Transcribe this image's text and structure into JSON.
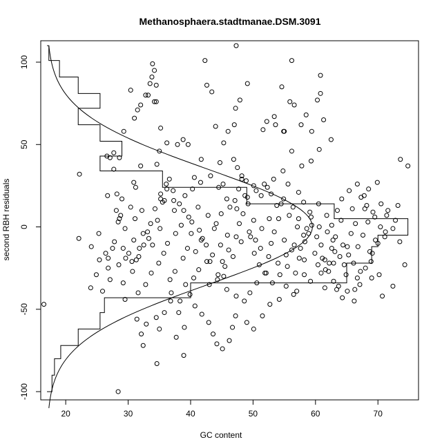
{
  "chart_data": {
    "type": "scatter",
    "title": "Methanosphaera.stadtmanae.DSM.3091",
    "xlabel": "GC content",
    "ylabel": "second RBH residuals",
    "xlim": [
      16,
      76.5
    ],
    "ylim": [
      -105,
      113
    ],
    "xticks": [
      20,
      30,
      40,
      50,
      60,
      70
    ],
    "yticks": [
      -100,
      -50,
      0,
      50,
      100
    ],
    "xtick_labels": [
      "20",
      "30",
      "40",
      "50",
      "60",
      "70"
    ],
    "ytick_labels": [
      "-100",
      "-50",
      "0",
      "50",
      "100"
    ],
    "density_curve": {
      "description": "normal density overlay, drawn sideways (y on vertical axis, density toward GC)",
      "mean": 0,
      "sd": 35,
      "base_x": 17,
      "peak_x": 59.5,
      "y_range": [
        -110,
        110
      ]
    },
    "histogram": {
      "orientation": "horizontal",
      "base_x": 17,
      "bins": [
        {
          "y0": -100,
          "y1": -90,
          "x": 17.8
        },
        {
          "y0": -90,
          "y1": -80,
          "x": 18.2
        },
        {
          "y0": -80,
          "y1": -72,
          "x": 19.2
        },
        {
          "y0": -72,
          "y1": -62,
          "x": 22
        },
        {
          "y0": -62,
          "y1": -52,
          "x": 25.5
        },
        {
          "y0": -52,
          "y1": -43,
          "x": 26.2
        },
        {
          "y0": -43,
          "y1": -34,
          "x": 40
        },
        {
          "y0": -34,
          "y1": -22,
          "x": 65
        },
        {
          "y0": -22,
          "y1": -12,
          "x": 69
        },
        {
          "y0": -12,
          "y1": -5,
          "x": 70
        },
        {
          "y0": -5,
          "y1": 5,
          "x": 74.8
        },
        {
          "y0": 5,
          "y1": 14,
          "x": 63
        },
        {
          "y0": 14,
          "y1": 24,
          "x": 49
        },
        {
          "y0": 24,
          "y1": 34,
          "x": 35.5
        },
        {
          "y0": 34,
          "y1": 43,
          "x": 25.5
        },
        {
          "y0": 43,
          "y1": 52,
          "x": 29
        },
        {
          "y0": 52,
          "y1": 62,
          "x": 25.5
        },
        {
          "y0": 62,
          "y1": 72,
          "x": 22
        },
        {
          "y0": 72,
          "y1": 81,
          "x": 25.5
        },
        {
          "y0": 81,
          "y1": 91,
          "x": 22
        },
        {
          "y0": 91,
          "y1": 101,
          "x": 19
        },
        {
          "y0": 101,
          "y1": 110,
          "x": 17.3
        }
      ]
    },
    "points": [
      [
        16.5,
        -47
      ],
      [
        22.2,
        32
      ],
      [
        22.1,
        -7
      ],
      [
        28.4,
        -100
      ],
      [
        47.3,
        110
      ],
      [
        56.2,
        101
      ],
      [
        60.8,
        92
      ],
      [
        73.6,
        41
      ],
      [
        74.8,
        37
      ],
      [
        33.9,
        99
      ],
      [
        33.8,
        91
      ],
      [
        34.2,
        95
      ],
      [
        33.5,
        87
      ],
      [
        34.5,
        86
      ],
      [
        33.2,
        80
      ],
      [
        34.5,
        76
      ],
      [
        31.5,
        71
      ],
      [
        32,
        74
      ],
      [
        32.8,
        80
      ],
      [
        31,
        66
      ],
      [
        30.4,
        83
      ],
      [
        34.2,
        76
      ],
      [
        35.2,
        60
      ],
      [
        35,
        46
      ],
      [
        34.6,
        38
      ],
      [
        36.2,
        51
      ],
      [
        37.9,
        50
      ],
      [
        38.8,
        53
      ],
      [
        39.6,
        50
      ],
      [
        36.6,
        29
      ],
      [
        37.2,
        22
      ],
      [
        36.2,
        23
      ],
      [
        35.8,
        16
      ],
      [
        35.2,
        17
      ],
      [
        35.5,
        15
      ],
      [
        35.1,
        -1
      ],
      [
        34.7,
        4
      ],
      [
        33.3,
        -7
      ],
      [
        33.9,
        -11
      ],
      [
        42.3,
        101
      ],
      [
        42.6,
        86
      ],
      [
        43.4,
        82
      ],
      [
        44,
        61
      ],
      [
        45.3,
        51
      ],
      [
        46,
        58
      ],
      [
        47.2,
        72
      ],
      [
        47.9,
        77
      ],
      [
        49.1,
        87
      ],
      [
        47,
        62
      ],
      [
        41.7,
        41
      ],
      [
        44.7,
        39
      ],
      [
        46.9,
        41
      ],
      [
        47.5,
        36
      ],
      [
        48.2,
        29
      ],
      [
        47.7,
        23
      ],
      [
        49.1,
        18
      ],
      [
        45.2,
        26
      ],
      [
        40.6,
        30
      ],
      [
        29.3,
        58
      ],
      [
        31.2,
        24
      ],
      [
        32,
        37
      ],
      [
        30.9,
        27
      ],
      [
        29,
        17
      ],
      [
        27.1,
        42
      ],
      [
        26.6,
        43
      ],
      [
        27.7,
        45
      ],
      [
        28.6,
        42
      ],
      [
        27.7,
        35
      ],
      [
        28.2,
        20
      ],
      [
        26.7,
        19
      ],
      [
        25.3,
        -4
      ],
      [
        24.1,
        -12
      ],
      [
        25.4,
        -20
      ],
      [
        26.8,
        -25
      ],
      [
        26.8,
        -19
      ],
      [
        27.5,
        -13
      ],
      [
        27.8,
        -9
      ],
      [
        28.6,
        5
      ],
      [
        28.8,
        7
      ],
      [
        28.1,
        10
      ],
      [
        28.4,
        3
      ],
      [
        29.2,
        -13
      ],
      [
        29.6,
        -19
      ],
      [
        30.6,
        -21
      ],
      [
        30.1,
        -16
      ],
      [
        29.2,
        -34
      ],
      [
        27.1,
        -32
      ],
      [
        28.5,
        -23
      ],
      [
        24,
        -37
      ],
      [
        26.4,
        -16
      ],
      [
        24.9,
        -29
      ],
      [
        25.9,
        -39
      ],
      [
        29.5,
        -44
      ],
      [
        31.4,
        -56
      ],
      [
        32.9,
        -59
      ],
      [
        32.4,
        -72
      ],
      [
        32.1,
        -65
      ],
      [
        34.6,
        -83
      ],
      [
        35,
        -62
      ],
      [
        34.5,
        -55
      ],
      [
        35.8,
        -52
      ],
      [
        36.8,
        -45
      ],
      [
        38.3,
        -45
      ],
      [
        38.1,
        -52
      ],
      [
        37.7,
        -67
      ],
      [
        38.9,
        -78
      ],
      [
        39,
        -61
      ],
      [
        36.9,
        -40
      ],
      [
        36.7,
        -32
      ],
      [
        37.5,
        -27
      ],
      [
        38.8,
        -19
      ],
      [
        39.5,
        -13
      ],
      [
        40.1,
        -4
      ],
      [
        40.8,
        -15
      ],
      [
        41.9,
        -7
      ],
      [
        42.5,
        -11
      ],
      [
        43.1,
        -21
      ],
      [
        44.3,
        -32
      ],
      [
        45.3,
        -30
      ],
      [
        45.1,
        -21
      ],
      [
        46.1,
        -14
      ],
      [
        47.3,
        -6
      ],
      [
        47.8,
        2
      ],
      [
        48.4,
        8
      ],
      [
        49.6,
        -6
      ],
      [
        50.2,
        -16
      ],
      [
        51,
        -23
      ],
      [
        52.1,
        -28
      ],
      [
        52.9,
        -10
      ],
      [
        53.4,
        -3
      ],
      [
        54.1,
        5
      ],
      [
        55,
        -8
      ],
      [
        56.2,
        -14
      ],
      [
        57.4,
        -19
      ],
      [
        58.3,
        -9
      ],
      [
        58.9,
        -4
      ],
      [
        59.4,
        1
      ],
      [
        60.2,
        -6
      ],
      [
        60.9,
        -11
      ],
      [
        61.5,
        -20
      ],
      [
        62.1,
        -27
      ],
      [
        62.9,
        -33
      ],
      [
        63.4,
        -38
      ],
      [
        64.3,
        -43
      ],
      [
        65.1,
        -39
      ],
      [
        66.2,
        -45
      ],
      [
        67.1,
        -35
      ],
      [
        68,
        -25
      ],
      [
        69.1,
        -16
      ],
      [
        70,
        -10
      ],
      [
        71.2,
        -3
      ],
      [
        72.4,
        -1
      ],
      [
        73.5,
        -9
      ],
      [
        70.7,
        -42
      ],
      [
        72.4,
        -36
      ],
      [
        74.3,
        -23
      ],
      [
        41.7,
        -8
      ],
      [
        43.8,
        -1
      ],
      [
        44.9,
        8
      ],
      [
        46.3,
        12
      ],
      [
        47.1,
        16
      ],
      [
        49.2,
        14
      ],
      [
        50.1,
        4
      ],
      [
        51.4,
        -1
      ],
      [
        52.6,
        5
      ],
      [
        53.8,
        13
      ],
      [
        54.9,
        17
      ],
      [
        56.4,
        12
      ],
      [
        57.3,
        5
      ],
      [
        58.6,
        -1
      ],
      [
        59.1,
        9
      ],
      [
        60.5,
        14
      ],
      [
        61.8,
        7
      ],
      [
        62.6,
        1
      ],
      [
        63.2,
        -6
      ],
      [
        64.4,
        -11
      ],
      [
        65.3,
        -17
      ],
      [
        66.1,
        -22
      ],
      [
        66.8,
        -12
      ],
      [
        67.6,
        -5
      ],
      [
        68.4,
        3
      ],
      [
        69.2,
        9
      ],
      [
        70.5,
        14
      ],
      [
        71.4,
        7
      ],
      [
        68.7,
        -15
      ],
      [
        67.2,
        -27
      ],
      [
        63.7,
        -36
      ],
      [
        64.9,
        -29
      ],
      [
        66.7,
        -31
      ],
      [
        68.9,
        -21
      ],
      [
        70.2,
        -29
      ],
      [
        65.7,
        -4
      ],
      [
        66.4,
        2
      ],
      [
        67.9,
        11
      ],
      [
        69.6,
        -8
      ],
      [
        62.2,
        -22
      ],
      [
        60.9,
        -28
      ],
      [
        59.2,
        -33
      ],
      [
        61.5,
        -37
      ],
      [
        63.1,
        -15
      ],
      [
        62.8,
        -8
      ],
      [
        64.1,
        4
      ],
      [
        65.9,
        11
      ],
      [
        67.3,
        18
      ],
      [
        68.5,
        23
      ],
      [
        69.9,
        27
      ],
      [
        58.2,
        -29
      ],
      [
        57,
        -39
      ],
      [
        56.5,
        -41
      ],
      [
        55.3,
        -36
      ],
      [
        54.2,
        -44
      ],
      [
        52.7,
        -47
      ],
      [
        51.5,
        -54
      ],
      [
        50.1,
        -62
      ],
      [
        49,
        -58
      ],
      [
        47.2,
        -54
      ],
      [
        46.7,
        -61
      ],
      [
        46.2,
        -69
      ],
      [
        45.1,
        -74
      ],
      [
        44.2,
        -71
      ],
      [
        43.6,
        -65
      ],
      [
        42.9,
        -58
      ],
      [
        41.8,
        -53
      ],
      [
        40.7,
        -48
      ],
      [
        39.9,
        -41
      ],
      [
        39.2,
        -35
      ],
      [
        40.5,
        -31
      ],
      [
        41.3,
        -26
      ],
      [
        42.6,
        -21
      ],
      [
        43.5,
        -17
      ],
      [
        44.8,
        -11
      ],
      [
        45.9,
        -5
      ],
      [
        44.1,
        2
      ],
      [
        42.8,
        7
      ],
      [
        41.2,
        12
      ],
      [
        39.7,
        6
      ],
      [
        38.5,
        1
      ],
      [
        37.6,
        -4
      ],
      [
        36.3,
        -10
      ],
      [
        35.7,
        -16
      ],
      [
        34.9,
        -22
      ],
      [
        33.7,
        -28
      ],
      [
        32.8,
        -35
      ],
      [
        31.6,
        -40
      ],
      [
        30.7,
        -27
      ],
      [
        31.7,
        -18
      ],
      [
        32.5,
        -11
      ],
      [
        33.1,
        -3
      ],
      [
        31.1,
        5
      ],
      [
        32.2,
        10
      ],
      [
        30.4,
        12
      ],
      [
        29.5,
        -1
      ],
      [
        30.9,
        -8
      ],
      [
        31.8,
        -13
      ],
      [
        37.4,
        10
      ],
      [
        38.2,
        14
      ],
      [
        39.1,
        19
      ],
      [
        40.3,
        23
      ],
      [
        41.6,
        27
      ],
      [
        43.2,
        31
      ],
      [
        44.5,
        24
      ],
      [
        45.8,
        17
      ],
      [
        47.4,
        11
      ],
      [
        48.7,
        19
      ],
      [
        50.5,
        22
      ],
      [
        51.8,
        26
      ],
      [
        52.9,
        20
      ],
      [
        54.5,
        14
      ],
      [
        55.8,
        7
      ],
      [
        57.1,
        0
      ],
      [
        58.1,
        -5
      ],
      [
        56.6,
        -11
      ],
      [
        55.3,
        -17
      ],
      [
        54,
        -22
      ],
      [
        52.5,
        -18
      ],
      [
        51.2,
        -13
      ],
      [
        50.4,
        -8
      ],
      [
        49.4,
        -3
      ],
      [
        48.1,
        -9
      ],
      [
        46.8,
        -18
      ],
      [
        45.5,
        -24
      ],
      [
        44.4,
        -29
      ],
      [
        43,
        -35
      ],
      [
        56.6,
        74
      ],
      [
        57.7,
        62
      ],
      [
        58.5,
        68
      ],
      [
        59.4,
        58
      ],
      [
        60.3,
        77
      ],
      [
        60.8,
        81
      ],
      [
        61.3,
        65
      ],
      [
        62.5,
        53
      ],
      [
        60.6,
        47
      ],
      [
        59.3,
        40
      ],
      [
        57.8,
        37
      ],
      [
        56.2,
        46
      ],
      [
        55,
        58
      ],
      [
        53.6,
        62
      ],
      [
        52.2,
        64
      ],
      [
        51.6,
        59
      ],
      [
        54.9,
        58
      ],
      [
        53.4,
        67
      ],
      [
        54.6,
        85
      ],
      [
        55.9,
        76
      ],
      [
        48.2,
        31
      ],
      [
        48.9,
        28
      ],
      [
        50.1,
        25
      ],
      [
        51.3,
        19
      ],
      [
        52.3,
        24
      ],
      [
        53.3,
        29
      ],
      [
        54.8,
        34
      ],
      [
        55.6,
        26
      ],
      [
        57.3,
        21
      ],
      [
        58.1,
        15
      ],
      [
        59.3,
        6
      ],
      [
        60.6,
        0
      ],
      [
        61.9,
        -3
      ],
      [
        63.5,
        10
      ],
      [
        64.2,
        17
      ],
      [
        65.4,
        22
      ],
      [
        66.7,
        26
      ],
      [
        67.8,
        19
      ],
      [
        68.2,
        13
      ],
      [
        69.5,
        6
      ],
      [
        70.4,
        0
      ],
      [
        71.1,
        -6
      ],
      [
        71.6,
        10
      ],
      [
        72.8,
        4
      ],
      [
        73.2,
        13
      ],
      [
        69,
        -31
      ],
      [
        66.3,
        -38
      ],
      [
        64.6,
        -23
      ],
      [
        62.6,
        -13
      ],
      [
        61.1,
        -19
      ],
      [
        45.8,
        -38
      ],
      [
        47.3,
        -42
      ],
      [
        48.6,
        -45
      ],
      [
        49.5,
        -40
      ],
      [
        50.6,
        -34
      ],
      [
        51.9,
        -28
      ],
      [
        53.1,
        -34
      ],
      [
        54.3,
        -29
      ],
      [
        55.5,
        -24
      ],
      [
        56.8,
        -28
      ],
      [
        58.2,
        -20
      ],
      [
        57.6,
        -13
      ],
      [
        59.9,
        -16
      ],
      [
        60.4,
        -23
      ],
      [
        61.6,
        -26
      ],
      [
        62.9,
        -22
      ],
      [
        63.9,
        -18
      ],
      [
        65.1,
        -12
      ],
      [
        41.4,
        -2
      ],
      [
        40.2,
        3
      ],
      [
        38.9,
        10
      ],
      [
        37.3,
        16
      ],
      [
        36.1,
        26
      ],
      [
        35.2,
        20
      ],
      [
        34.3,
        11
      ],
      [
        33.6,
        2
      ],
      [
        32.4,
        -4
      ],
      [
        31.3,
        -20
      ]
    ]
  }
}
